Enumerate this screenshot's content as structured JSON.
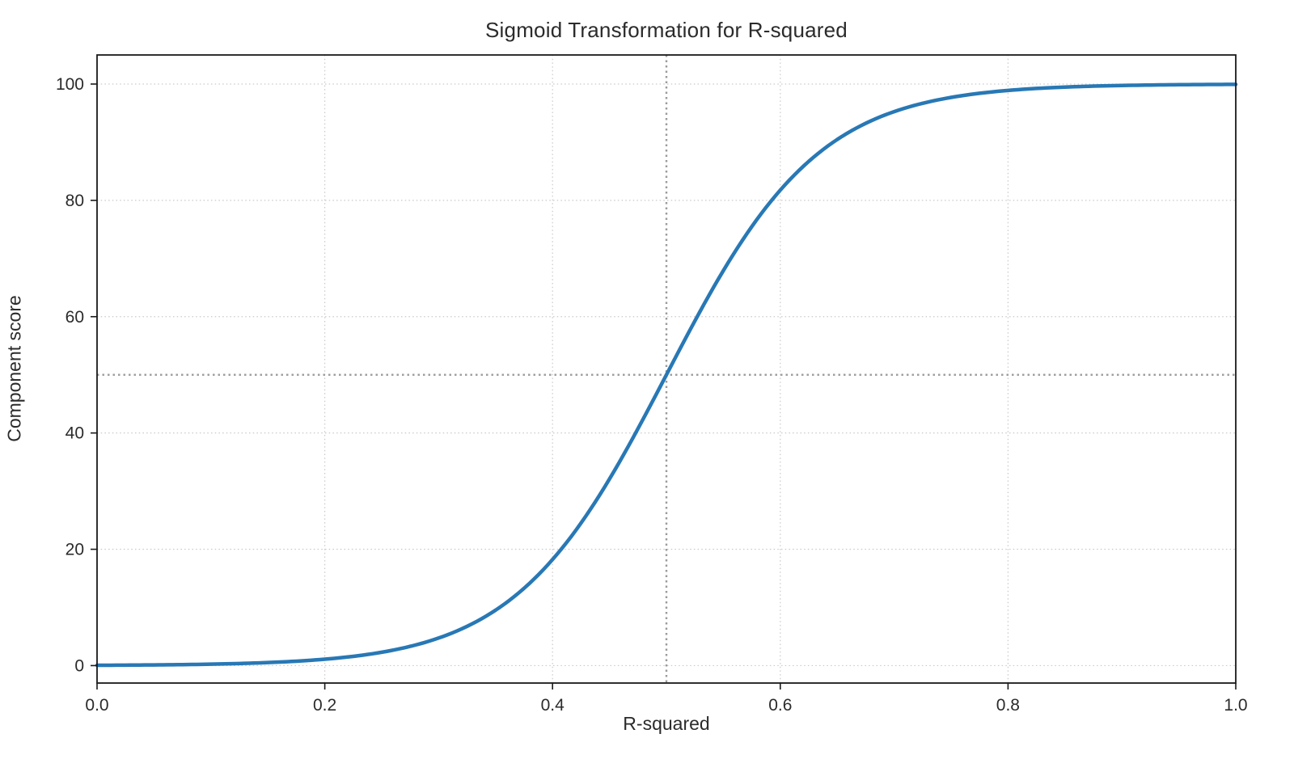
{
  "chart_data": {
    "type": "line",
    "title": "Sigmoid Transformation for R-squared",
    "xlabel": "R-squared",
    "ylabel": "Component score",
    "xlim": [
      0,
      1
    ],
    "ylim": [
      -3,
      105
    ],
    "x_tick_labels": [
      "0.0",
      "0.2",
      "0.4",
      "0.6",
      "0.8",
      "1.0"
    ],
    "x_tick_values": [
      0,
      0.2,
      0.4,
      0.6,
      0.8,
      1.0
    ],
    "y_tick_labels": [
      "0",
      "20",
      "40",
      "60",
      "80",
      "100"
    ],
    "y_tick_values": [
      0,
      20,
      40,
      60,
      80,
      100
    ],
    "grid": true,
    "grid_style": "dotted",
    "legend": "none",
    "reference_lines": {
      "vertical_x": 0.5,
      "horizontal_y": 50
    },
    "series": [
      {
        "name": "sigmoid-curve",
        "color": "#2878b5",
        "line_width": 4.5,
        "sigmoid_params": {
          "midpoint": 0.5,
          "steepness": 15,
          "max": 100
        },
        "points": [
          [
            0.0,
            0.06
          ],
          [
            0.05,
            0.12
          ],
          [
            0.1,
            0.25
          ],
          [
            0.15,
            0.52
          ],
          [
            0.2,
            1.1
          ],
          [
            0.25,
            2.3
          ],
          [
            0.3,
            4.74
          ],
          [
            0.35,
            9.53
          ],
          [
            0.4,
            18.24
          ],
          [
            0.45,
            32.08
          ],
          [
            0.5,
            50.0
          ],
          [
            0.55,
            67.92
          ],
          [
            0.6,
            81.76
          ],
          [
            0.65,
            90.47
          ],
          [
            0.7,
            95.26
          ],
          [
            0.75,
            97.7
          ],
          [
            0.8,
            98.9
          ],
          [
            0.85,
            99.48
          ],
          [
            0.9,
            99.75
          ],
          [
            0.95,
            99.88
          ],
          [
            1.0,
            99.94
          ]
        ]
      }
    ]
  },
  "colors": {
    "curve": "#2878b5",
    "grid": "#c9c9c9",
    "reference": "#9b9b9b",
    "spine": "#1a1a1a",
    "text": "#2b2b2b",
    "background": "#ffffff"
  }
}
